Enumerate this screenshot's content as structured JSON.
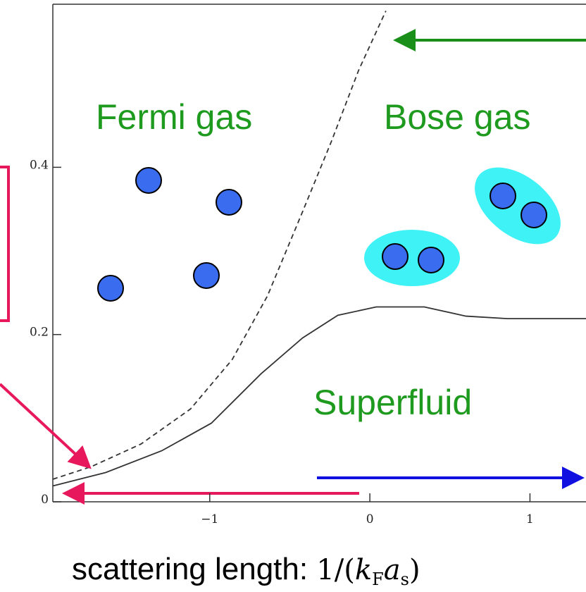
{
  "chart_data": {
    "type": "line",
    "annotations": {
      "fermi": "Fermi gas",
      "bose": "Bose gas",
      "superfluid": "Superfluid"
    },
    "x_label": [
      "scattering length: ",
      "1/(",
      "k",
      "F",
      "a",
      "s",
      ")"
    ],
    "xlim": [
      -1.98,
      1.35
    ],
    "ylim": [
      0,
      0.595
    ],
    "xticks": [
      {
        "value": -1,
        "label": "−1"
      },
      0,
      1
    ],
    "yticks": [
      0,
      0.2,
      0.4
    ],
    "series": [
      {
        "color": "#333333",
        "dashed": true,
        "x": [
          -1.98,
          -1.74,
          -1.43,
          -1.12,
          -0.86,
          -0.64,
          -0.42,
          -0.24,
          -0.07,
          0.1
        ],
        "values": [
          0.027,
          0.042,
          0.069,
          0.111,
          0.17,
          0.246,
          0.347,
          0.431,
          0.516,
          0.587
        ]
      },
      {
        "color": "#333333",
        "dashed": false,
        "x": [
          -1.98,
          -1.65,
          -1.3,
          -0.99,
          -0.68,
          -0.42,
          -0.2,
          0.04,
          0.34,
          0.6,
          0.86,
          1.35
        ],
        "values": [
          0.019,
          0.035,
          0.061,
          0.094,
          0.153,
          0.196,
          0.223,
          0.233,
          0.233,
          0.222,
          0.219,
          0.219
        ]
      }
    ]
  }
}
